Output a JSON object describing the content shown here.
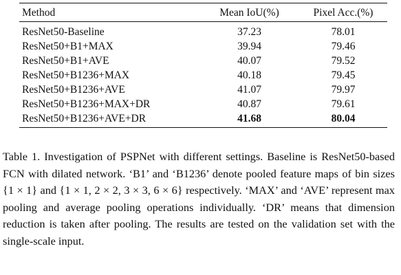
{
  "table": {
    "headers": [
      "Method",
      "Mean IoU(%)",
      "Pixel Acc.(%)"
    ],
    "rows": [
      {
        "method": "ResNet50-Baseline",
        "miou": "37.23",
        "pacc": "78.01",
        "best": false
      },
      {
        "method": "ResNet50+B1+MAX",
        "miou": "39.94",
        "pacc": "79.46",
        "best": false
      },
      {
        "method": "ResNet50+B1+AVE",
        "miou": "40.07",
        "pacc": "79.52",
        "best": false
      },
      {
        "method": "ResNet50+B1236+MAX",
        "miou": "40.18",
        "pacc": "79.45",
        "best": false
      },
      {
        "method": "ResNet50+B1236+AVE",
        "miou": "41.07",
        "pacc": "79.97",
        "best": false
      },
      {
        "method": "ResNet50+B1236+MAX+DR",
        "miou": "40.87",
        "pacc": "79.61",
        "best": false
      },
      {
        "method": "ResNet50+B1236+AVE+DR",
        "miou": "41.68",
        "pacc": "80.04",
        "best": true
      }
    ]
  },
  "caption": "Table 1. Investigation of PSPNet with different settings. Baseline is ResNet50-based FCN with dilated network. ‘B1’ and ‘B1236’ denote pooled feature maps of bin sizes {1 × 1} and {1 × 1, 2 × 2, 3 × 3, 6 × 6} respectively. ‘MAX’ and ‘AVE’ represent max pooling and average pooling operations individually. ‘DR’ means that dimension reduction is taken after pooling. The results are tested on the validation set with the single-scale input."
}
